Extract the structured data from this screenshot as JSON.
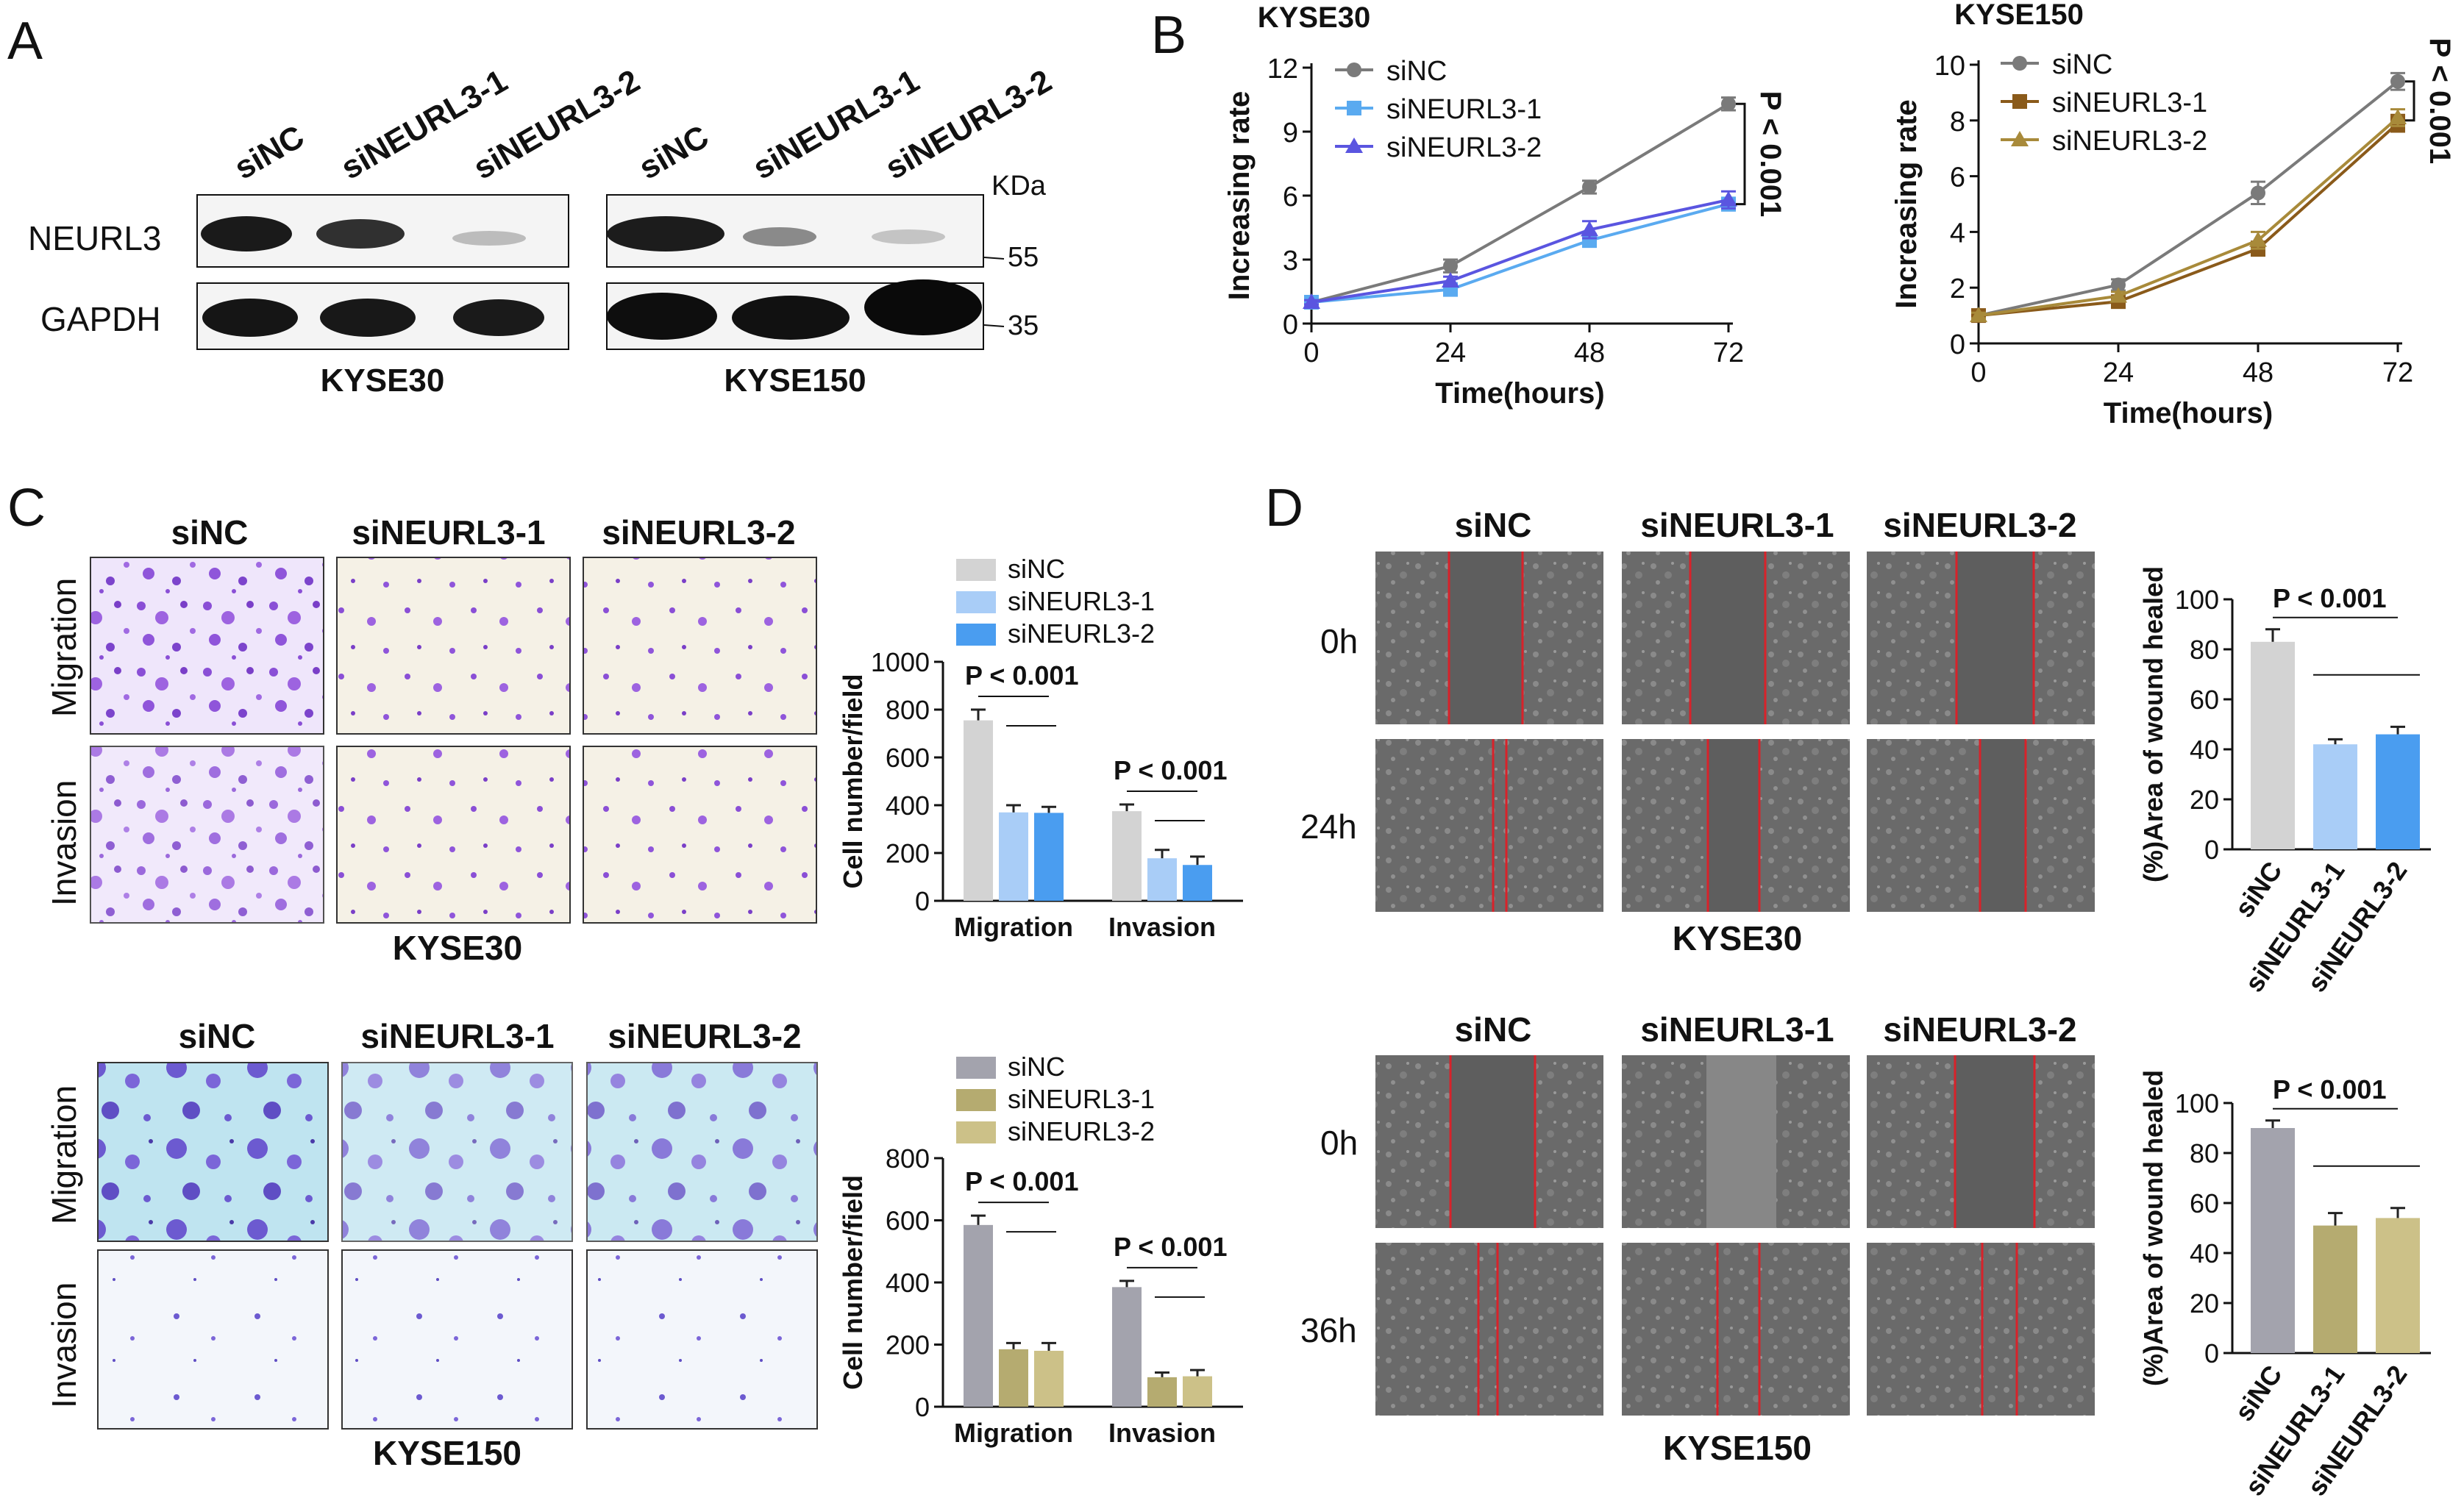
{
  "panel_letters": {
    "A": "A",
    "B": "B",
    "C": "C",
    "D": "D"
  },
  "colors": {
    "sinc_gray_light": "#d3d3d3",
    "blue_light": "#a9cdf7",
    "blue": "#4a9df0",
    "line_gray": "#7a7a7a",
    "line_blue_light": "#5aaaf0",
    "line_blue_dark": "#5a55e0",
    "line_brown": "#8a5a1a",
    "line_olive": "#a88a3a",
    "bar_gray_dark": "#a3a3ad",
    "bar_olive_1": "#b5ab70",
    "bar_olive_2": "#ccc188",
    "stain_purple": "#8a4fd6",
    "stain_blue_bg": "#bfe4f0",
    "wound_red": "#d8222a"
  },
  "panelA": {
    "lanes": [
      "siNC",
      "siNEURL3-1",
      "siNEURL3-2",
      "siNC",
      "siNEURL3-1",
      "siNEURL3-2"
    ],
    "row_labels": [
      "NEURL3",
      "GAPDH"
    ],
    "kda_label": "KDa",
    "markers": [
      "55",
      "35"
    ],
    "cell_lines": [
      "KYSE30",
      "KYSE150"
    ]
  },
  "panelB": {
    "legend_b1": [
      "siNC",
      "siNEURL3-1",
      "siNEURL3-2"
    ],
    "legend_b2": [
      "siNC",
      "siNEURL3-1",
      "siNEURL3-2"
    ]
  },
  "panelC": {
    "headers": [
      "siNC",
      "siNEURL3-1",
      "siNEURL3-2"
    ],
    "rows": [
      "Migration",
      "Invasion"
    ],
    "cell_lines": [
      "KYSE30",
      "KYSE150"
    ],
    "legend_c1": [
      "siNC",
      "siNEURL3-1",
      "siNEURL3-2"
    ],
    "legend_c2": [
      "siNC",
      "siNEURL3-1",
      "siNEURL3-2"
    ]
  },
  "panelD": {
    "headers": [
      "siNC",
      "siNEURL3-1",
      "siNEURL3-2"
    ],
    "top_times": [
      "0h",
      "24h"
    ],
    "bottom_times": [
      "0h",
      "36h"
    ],
    "cell_lines": [
      "KYSE30",
      "KYSE150"
    ]
  },
  "chart_data": [
    {
      "id": "b1",
      "type": "line",
      "title": "KYSE30",
      "xlabel": "Time(hours)",
      "ylabel": "Increasing rate",
      "x": [
        0,
        24,
        48,
        72
      ],
      "xlim": [
        0,
        72
      ],
      "ylim": [
        0,
        12
      ],
      "xticks": [
        0,
        24,
        48,
        72
      ],
      "yticks": [
        0,
        3,
        6,
        9,
        12
      ],
      "series": [
        {
          "name": "siNC",
          "values": [
            1.0,
            2.7,
            6.4,
            10.3
          ],
          "errors": [
            0.1,
            0.3,
            0.3,
            0.3
          ]
        },
        {
          "name": "siNEURL3-1",
          "values": [
            1.0,
            1.6,
            3.9,
            5.6
          ],
          "errors": [
            0.1,
            0.2,
            0.3,
            0.3
          ]
        },
        {
          "name": "siNEURL3-2",
          "values": [
            1.0,
            2.0,
            4.4,
            5.8
          ],
          "errors": [
            0.1,
            0.2,
            0.4,
            0.4
          ]
        }
      ],
      "annotation": "P < 0.001"
    },
    {
      "id": "b2",
      "type": "line",
      "title": "KYSE150",
      "xlabel": "Time(hours)",
      "ylabel": "Increasing rate",
      "x": [
        0,
        24,
        48,
        72
      ],
      "xlim": [
        0,
        72
      ],
      "ylim": [
        0,
        10
      ],
      "xticks": [
        0,
        24,
        48,
        72
      ],
      "yticks": [
        0,
        2,
        4,
        6,
        8,
        10
      ],
      "series": [
        {
          "name": "siNC",
          "values": [
            1.0,
            2.1,
            5.4,
            9.4
          ],
          "errors": [
            0.1,
            0.2,
            0.4,
            0.3
          ]
        },
        {
          "name": "siNEURL3-1",
          "values": [
            1.0,
            1.5,
            3.4,
            7.9
          ],
          "errors": [
            0.1,
            0.15,
            0.25,
            0.3
          ]
        },
        {
          "name": "siNEURL3-2",
          "values": [
            1.0,
            1.7,
            3.7,
            8.1
          ],
          "errors": [
            0.1,
            0.15,
            0.3,
            0.3
          ]
        }
      ],
      "annotation": "P < 0.001"
    },
    {
      "id": "c1",
      "type": "bar",
      "cell_line": "KYSE30",
      "categories": [
        "Migration",
        "Invasion"
      ],
      "ylabel": "Cell number/field",
      "ylim": [
        0,
        1000
      ],
      "yticks": [
        0,
        200,
        400,
        600,
        800,
        1000
      ],
      "series": [
        {
          "name": "siNC",
          "values": [
            755,
            375
          ],
          "errors": [
            45,
            28
          ]
        },
        {
          "name": "siNEURL3-1",
          "values": [
            370,
            178
          ],
          "errors": [
            30,
            35
          ]
        },
        {
          "name": "siNEURL3-2",
          "values": [
            368,
            150
          ],
          "errors": [
            25,
            35
          ]
        }
      ],
      "annotations": [
        "P < 0.001",
        "P < 0.001"
      ]
    },
    {
      "id": "c2",
      "type": "bar",
      "cell_line": "KYSE150",
      "categories": [
        "Migration",
        "Invasion"
      ],
      "ylabel": "Cell number/field",
      "ylim": [
        0,
        800
      ],
      "yticks": [
        0,
        200,
        400,
        600,
        800
      ],
      "series": [
        {
          "name": "siNC",
          "values": [
            585,
            385
          ],
          "errors": [
            30,
            20
          ]
        },
        {
          "name": "siNEURL3-1",
          "values": [
            185,
            95
          ],
          "errors": [
            20,
            15
          ]
        },
        {
          "name": "siNEURL3-2",
          "values": [
            180,
            98
          ],
          "errors": [
            25,
            20
          ]
        }
      ],
      "annotations": [
        "P < 0.001",
        "P < 0.001"
      ]
    },
    {
      "id": "d1",
      "type": "bar",
      "cell_line": "KYSE30",
      "categories": [
        "siNC",
        "siNEURL3-1",
        "siNEURL3-2"
      ],
      "ylabel": "(%)Area of wound healed",
      "ylim": [
        0,
        100
      ],
      "yticks": [
        0,
        20,
        40,
        60,
        80,
        100
      ],
      "values": [
        83,
        42,
        46
      ],
      "errors": [
        5,
        2,
        3
      ],
      "annotation": "P < 0.001"
    },
    {
      "id": "d2",
      "type": "bar",
      "cell_line": "KYSE150",
      "categories": [
        "siNC",
        "siNEURL3-1",
        "siNEURL3-2"
      ],
      "ylabel": "(%)Area of wound healed",
      "ylim": [
        0,
        100
      ],
      "yticks": [
        0,
        20,
        40,
        60,
        80,
        100
      ],
      "values": [
        90,
        51,
        54
      ],
      "errors": [
        3,
        5,
        4
      ],
      "annotation": "P < 0.001"
    }
  ]
}
